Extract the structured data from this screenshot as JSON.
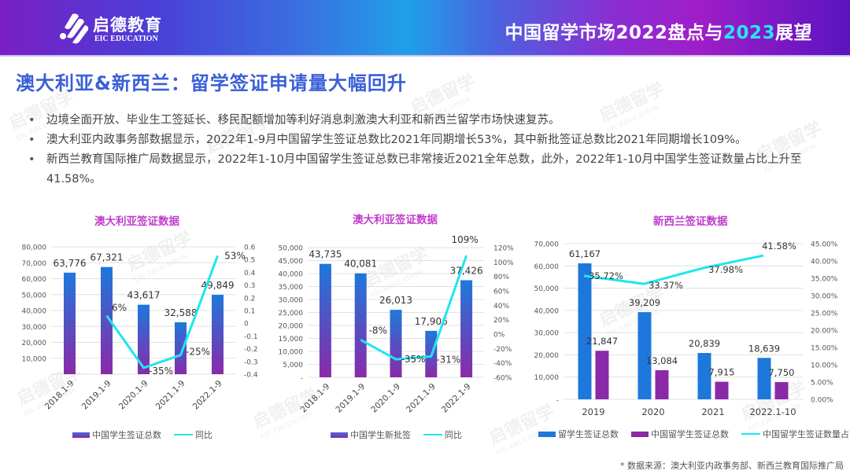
{
  "header": {
    "logo_cn": "启德教育",
    "logo_en": "EIC EDUCATION",
    "title_part1": "中国留学市场2022盘点与",
    "title_highlight": "2023",
    "title_part2": "展望"
  },
  "section": {
    "title": "澳大利亚&新西兰：留学签证申请量大幅回升",
    "bullets": [
      "边境全面开放、毕业生工签延长、移民配额增加等利好消息刺激澳大利亚和新西兰留学市场快速复苏。",
      "澳大利亚内政事务部数据显示，2022年1-9月中国留学生签证总数比2021年同期增长53%，其中新批签证总数比2021年同期增长109%。",
      "新西兰教育国际推广局数据显示，2022年1-10月中国留学生签证总数已非常接近2021全年总数，此外，2022年1-10月中国学生签证数量占比上升至41.58%。"
    ]
  },
  "colors": {
    "bar_top": "#1e78dc",
    "bar_bottom": "#8a2aa8",
    "line": "#1ee6f0",
    "nz_total": "#1e78dc",
    "nz_china": "#8a2aa8",
    "chart_title": "#c03ccc",
    "section_title": "#3a5fd8"
  },
  "chart_data": [
    {
      "type": "bar",
      "title": "澳大利亚签证数据",
      "categories": [
        "2018.1-9",
        "2019.1-9",
        "2020.1-9",
        "2021.1-9",
        "2022.1-9"
      ],
      "series": [
        {
          "name": "中国学生签证总数",
          "type": "bar",
          "axis": "left",
          "values": [
            63776,
            67321,
            43617,
            32588,
            49849
          ],
          "labels": [
            "63,776",
            "67,321",
            "43,617",
            "32,588",
            "49,849"
          ]
        },
        {
          "name": "同比",
          "type": "line",
          "axis": "right",
          "values": [
            null,
            0.06,
            -0.35,
            -0.25,
            0.53
          ],
          "labels": [
            "",
            "6%",
            "-35%",
            "-25%",
            "53%"
          ]
        }
      ],
      "ylim_left": [
        0,
        80000
      ],
      "yticks_left": [
        "",
        "10,000",
        "20,000",
        "30,000",
        "40,000",
        "50,000",
        "60,000",
        "70,000",
        "80,000"
      ],
      "ylim_right": [
        -0.4,
        0.6
      ],
      "yticks_right": [
        "-0.4",
        "-0.3",
        "-0.2",
        "-0.1",
        "0",
        "0.1",
        "0.2",
        "0.3",
        "0.4",
        "0.5",
        "0.6"
      ],
      "grid": true,
      "legend_position": "bottom"
    },
    {
      "type": "bar",
      "title": "澳大利亚签证数据",
      "categories": [
        "2018.1-9",
        "2019.1-9",
        "2020.1-9",
        "2021.1-9",
        "2022.1-9"
      ],
      "series": [
        {
          "name": "中国学生新批签",
          "type": "bar",
          "axis": "left",
          "values": [
            43735,
            40081,
            26013,
            17906,
            37426
          ],
          "labels": [
            "43,735",
            "40,081",
            "26,013",
            "17,906",
            "37,426"
          ]
        },
        {
          "name": "同比",
          "type": "line",
          "axis": "right",
          "values": [
            null,
            -0.08,
            -0.35,
            -0.31,
            1.09
          ],
          "labels": [
            "",
            "-8%",
            "-35%",
            "-31%",
            "109%"
          ]
        }
      ],
      "ylim_left": [
        0,
        50000
      ],
      "yticks_left": [
        "-",
        "5,000",
        "10,000",
        "15,000",
        "20,000",
        "25,000",
        "30,000",
        "35,000",
        "40,000",
        "45,000",
        "50,000"
      ],
      "ylim_right": [
        -0.6,
        1.2
      ],
      "yticks_right": [
        "-60%",
        "-40%",
        "-20%",
        "0%",
        "20%",
        "40%",
        "60%",
        "80%",
        "100%",
        "120%"
      ],
      "grid": true,
      "legend_position": "bottom"
    },
    {
      "type": "bar",
      "title": "新西兰签证数据",
      "categories": [
        "2019",
        "2020",
        "2021",
        "2022.1-10"
      ],
      "series": [
        {
          "name": "留学生签证总数",
          "type": "bar",
          "axis": "left",
          "values": [
            61167,
            39209,
            20839,
            18639
          ],
          "labels": [
            "61,167",
            "39,209",
            "20,839",
            "18,639"
          ]
        },
        {
          "name": "中国留学生签证总数",
          "type": "bar",
          "axis": "left",
          "values": [
            21847,
            13084,
            7915,
            7750
          ],
          "labels": [
            "21,847",
            "13,084",
            "7,915",
            "7,750"
          ]
        },
        {
          "name": "中国留学生签证数量占比",
          "type": "line",
          "axis": "right",
          "values": [
            0.3572,
            0.3337,
            0.3798,
            0.4158
          ],
          "labels": [
            "35.72%",
            "33.37%",
            "37.98%",
            "41.58%"
          ]
        }
      ],
      "ylim_left": [
        0,
        70000
      ],
      "yticks_left": [
        "-",
        "10,000",
        "20,000",
        "30,000",
        "40,000",
        "50,000",
        "60,000",
        "70,000"
      ],
      "ylim_right": [
        0,
        0.45
      ],
      "yticks_right": [
        "0.00%",
        "5.00%",
        "10.00%",
        "15.00%",
        "20.00%",
        "25.00%",
        "30.00%",
        "35.00%",
        "40.00%",
        "45.00%"
      ],
      "grid": true,
      "legend_position": "bottom"
    }
  ],
  "footer": {
    "source": "* 数据来源：澳大利亚内政事务部、新西兰教育国际推广局"
  }
}
